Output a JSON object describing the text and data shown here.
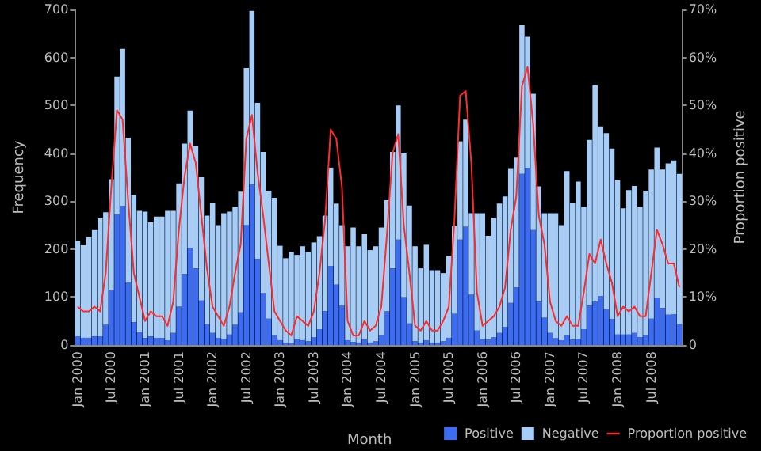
{
  "chart_data": {
    "type": "bar",
    "stacked": true,
    "xlabel": "Month",
    "ylabel": "Frequency",
    "y2label": "Proportion positive",
    "categories": [
      "Jan 2000",
      null,
      null,
      null,
      null,
      null,
      "Jul 2000",
      null,
      null,
      null,
      null,
      null,
      "Jan 2001",
      null,
      null,
      null,
      null,
      null,
      "Jul 2001",
      null,
      null,
      null,
      null,
      null,
      "Jan 2002",
      null,
      null,
      null,
      null,
      null,
      "Jul 2002",
      null,
      null,
      null,
      null,
      null,
      "Jan 2003",
      null,
      null,
      null,
      null,
      null,
      "Jul 2003",
      null,
      null,
      null,
      null,
      null,
      "Jan 2004",
      null,
      null,
      null,
      null,
      null,
      "Jul 2004",
      null,
      null,
      null,
      null,
      null,
      "Jan 2005",
      null,
      null,
      null,
      null,
      null,
      "Jul 2005",
      null,
      null,
      null,
      null,
      null,
      "Jan 2006",
      null,
      null,
      null,
      null,
      null,
      "Jul 2006",
      null,
      null,
      null,
      null,
      null,
      "Jan 2007",
      null,
      null,
      null,
      null,
      null,
      "Jul 2007",
      null,
      null,
      null,
      null,
      null,
      "Jan 2008",
      null,
      null,
      null,
      null,
      null,
      "Jul 2008",
      null,
      null,
      null,
      null,
      null
    ],
    "series": [
      {
        "name": "Positive",
        "color": "#3b6cf2",
        "values": [
          18,
          15,
          15,
          18,
          18,
          42,
          115,
          272,
          290,
          130,
          48,
          28,
          15,
          18,
          15,
          15,
          10,
          25,
          80,
          148,
          203,
          160,
          93,
          44,
          25,
          15,
          12,
          22,
          42,
          68,
          250,
          335,
          180,
          108,
          55,
          20,
          10,
          5,
          4,
          12,
          10,
          8,
          16,
          33,
          71,
          165,
          126,
          82,
          10,
          6,
          5,
          12,
          5,
          8,
          20,
          70,
          160,
          220,
          100,
          45,
          8,
          5,
          10,
          5,
          5,
          8,
          15,
          65,
          220,
          247,
          105,
          30,
          12,
          11,
          16,
          25,
          38,
          88,
          120,
          357,
          370,
          240,
          91,
          57,
          25,
          14,
          10,
          20,
          11,
          13,
          33,
          82,
          91,
          102,
          75,
          54,
          22,
          22,
          22,
          25,
          16,
          20,
          55,
          99,
          77,
          63,
          64,
          44
        ]
      },
      {
        "name": "Negative",
        "color": "#a6cdf7",
        "values": [
          200,
          193,
          210,
          222,
          246,
          235,
          231,
          288,
          328,
          302,
          265,
          252,
          263,
          238,
          253,
          253,
          270,
          255,
          257,
          272,
          286,
          256,
          257,
          226,
          272,
          235,
          263,
          256,
          246,
          252,
          328,
          362,
          325,
          295,
          267,
          287,
          197,
          176,
          190,
          176,
          196,
          186,
          198,
          194,
          199,
          205,
          169,
          168,
          196,
          239,
          201,
          219,
          193,
          198,
          225,
          232,
          243,
          280,
          301,
          246,
          198,
          155,
          199,
          151,
          151,
          142,
          171,
          184,
          205,
          223,
          170,
          245,
          263,
          217,
          250,
          270,
          272,
          281,
          271,
          310,
          273,
          284,
          240,
          218,
          250,
          261,
          240,
          343,
          286,
          328,
          255,
          346,
          451,
          354,
          367,
          356,
          322,
          263,
          301,
          307,
          272,
          302,
          311,
          313,
          289,
          316,
          321,
          313
        ]
      },
      {
        "name": "Proportion positive",
        "type": "line",
        "axis": "y2",
        "color": "#ff2a2a",
        "values": [
          8,
          7,
          7,
          8,
          7,
          15,
          33,
          49,
          47,
          30,
          15,
          10,
          5,
          7,
          6,
          6,
          4,
          9,
          24,
          35,
          42,
          38,
          27,
          16,
          8,
          6,
          4,
          8,
          15,
          21,
          43,
          48,
          36,
          27,
          17,
          7,
          5,
          3,
          2,
          6,
          5,
          4,
          7,
          15,
          26,
          45,
          43,
          33,
          5,
          2,
          2,
          5,
          3,
          4,
          8,
          23,
          40,
          44,
          25,
          15,
          4,
          3,
          5,
          3,
          3,
          5,
          8,
          26,
          52,
          53,
          38,
          11,
          4,
          5,
          6,
          8,
          12,
          24,
          31,
          54,
          58,
          46,
          27,
          21,
          9,
          5,
          4,
          6,
          4,
          4,
          11,
          19,
          17,
          22,
          17,
          13,
          6,
          8,
          7,
          8,
          6,
          6,
          15,
          24,
          21,
          17,
          17,
          12
        ]
      }
    ],
    "ylim": [
      0,
      700
    ],
    "yticks": [
      0,
      100,
      200,
      300,
      400,
      500,
      600,
      700
    ],
    "y2lim": [
      0,
      70
    ],
    "y2ticks": [
      0,
      {
        "value": 10,
        "label": "10%"
      },
      {
        "value": 20,
        "label": "20%"
      },
      {
        "value": 30,
        "label": "30%"
      },
      {
        "value": 40,
        "label": "40%"
      },
      {
        "value": 50,
        "label": "50%"
      },
      {
        "value": 60,
        "label": "60%"
      },
      {
        "value": 70,
        "label": "70%"
      }
    ],
    "grid": false,
    "legend": "bottom right",
    "marker": "none",
    "line_style": "solid"
  }
}
